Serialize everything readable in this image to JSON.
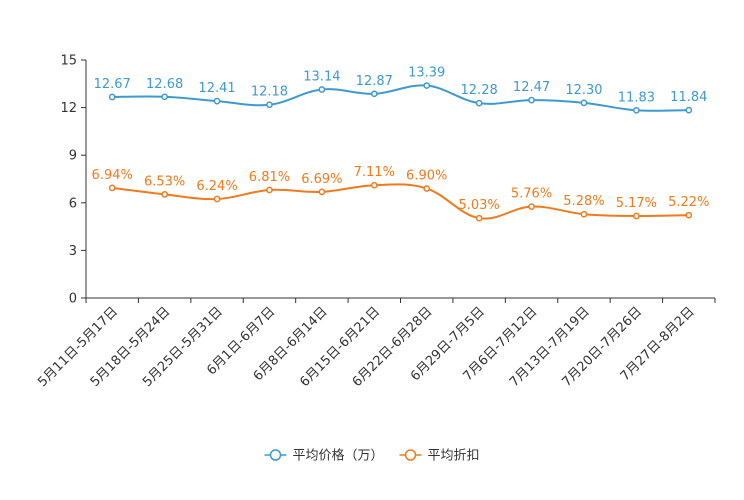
{
  "chart_data": {
    "type": "line",
    "categories": [
      "5月11日-5月17日",
      "5月18日-5月24日",
      "5月25日-5月31日",
      "6月1日-6月7日",
      "6月8日-6月14日",
      "6月15日-6月21日",
      "6月22日-6月28日",
      "6月29日-7月5日",
      "7月6日-7月12日",
      "7月13日-7月19日",
      "7月20日-7月26日",
      "7月27日-8月2日"
    ],
    "series": [
      {
        "name": "平均价格（万）",
        "color": "#3d9ad1",
        "values": [
          12.67,
          12.68,
          12.41,
          12.18,
          13.14,
          12.87,
          13.39,
          12.28,
          12.47,
          12.3,
          11.83,
          11.84
        ],
        "labels": [
          "12.67",
          "12.68",
          "12.41",
          "12.18",
          "13.14",
          "12.87",
          "13.39",
          "12.28",
          "12.47",
          "12.30",
          "11.83",
          "11.84"
        ]
      },
      {
        "name": "平均折扣",
        "color": "#f07a1c",
        "values": [
          6.94,
          6.53,
          6.24,
          6.81,
          6.69,
          7.11,
          6.9,
          5.03,
          5.76,
          5.28,
          5.17,
          5.22
        ],
        "labels": [
          "6.94%",
          "6.53%",
          "6.24%",
          "6.81%",
          "6.69%",
          "7.11%",
          "6.90%",
          "5.03%",
          "5.76%",
          "5.28%",
          "5.17%",
          "5.22%"
        ]
      }
    ],
    "ylim": [
      0,
      15
    ],
    "yticks": [
      0,
      3,
      6,
      9,
      12,
      15
    ],
    "grid": false,
    "legend_position": "bottom"
  }
}
